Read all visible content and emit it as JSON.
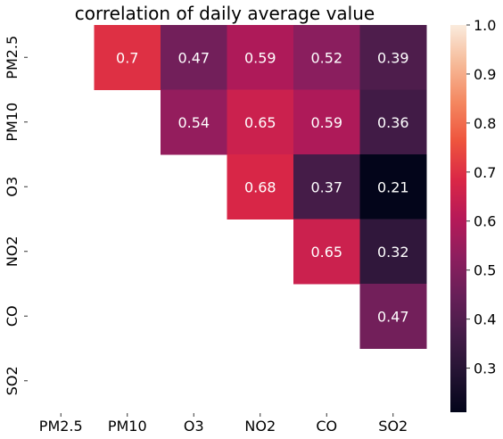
{
  "chart_data": {
    "type": "heatmap",
    "title": "correlation of daily average value",
    "xlabel": "",
    "ylabel": "",
    "x_categories": [
      "PM2.5",
      "PM10",
      "O3",
      "NO2",
      "CO",
      "SO2"
    ],
    "y_categories": [
      "PM2.5",
      "PM10",
      "O3",
      "NO2",
      "CO",
      "SO2"
    ],
    "mask": "lower triangle and diagonal hidden",
    "cells": [
      {
        "row": "PM2.5",
        "col": "PM10",
        "value": 0.7,
        "label": "0.7"
      },
      {
        "row": "PM2.5",
        "col": "O3",
        "value": 0.47,
        "label": "0.47"
      },
      {
        "row": "PM2.5",
        "col": "NO2",
        "value": 0.59,
        "label": "0.59"
      },
      {
        "row": "PM2.5",
        "col": "CO",
        "value": 0.52,
        "label": "0.52"
      },
      {
        "row": "PM2.5",
        "col": "SO2",
        "value": 0.39,
        "label": "0.39"
      },
      {
        "row": "PM10",
        "col": "O3",
        "value": 0.54,
        "label": "0.54"
      },
      {
        "row": "PM10",
        "col": "NO2",
        "value": 0.65,
        "label": "0.65"
      },
      {
        "row": "PM10",
        "col": "CO",
        "value": 0.59,
        "label": "0.59"
      },
      {
        "row": "PM10",
        "col": "SO2",
        "value": 0.36,
        "label": "0.36"
      },
      {
        "row": "O3",
        "col": "NO2",
        "value": 0.68,
        "label": "0.68"
      },
      {
        "row": "O3",
        "col": "CO",
        "value": 0.37,
        "label": "0.37"
      },
      {
        "row": "O3",
        "col": "SO2",
        "value": 0.21,
        "label": "0.21"
      },
      {
        "row": "NO2",
        "col": "CO",
        "value": 0.65,
        "label": "0.65"
      },
      {
        "row": "NO2",
        "col": "SO2",
        "value": 0.32,
        "label": "0.32"
      },
      {
        "row": "CO",
        "col": "SO2",
        "value": 0.47,
        "label": "0.47"
      }
    ],
    "colorbar": {
      "colormap": "rocket",
      "min": 0.21,
      "max": 1.0,
      "ticks": [
        0.3,
        0.4,
        0.5,
        0.6,
        0.7,
        0.8,
        0.9,
        1.0
      ],
      "tick_labels": [
        "0.3",
        "0.4",
        "0.5",
        "0.6",
        "0.7",
        "0.8",
        "0.9",
        "1.0"
      ]
    },
    "grid": false,
    "legend": "colorbar right"
  }
}
